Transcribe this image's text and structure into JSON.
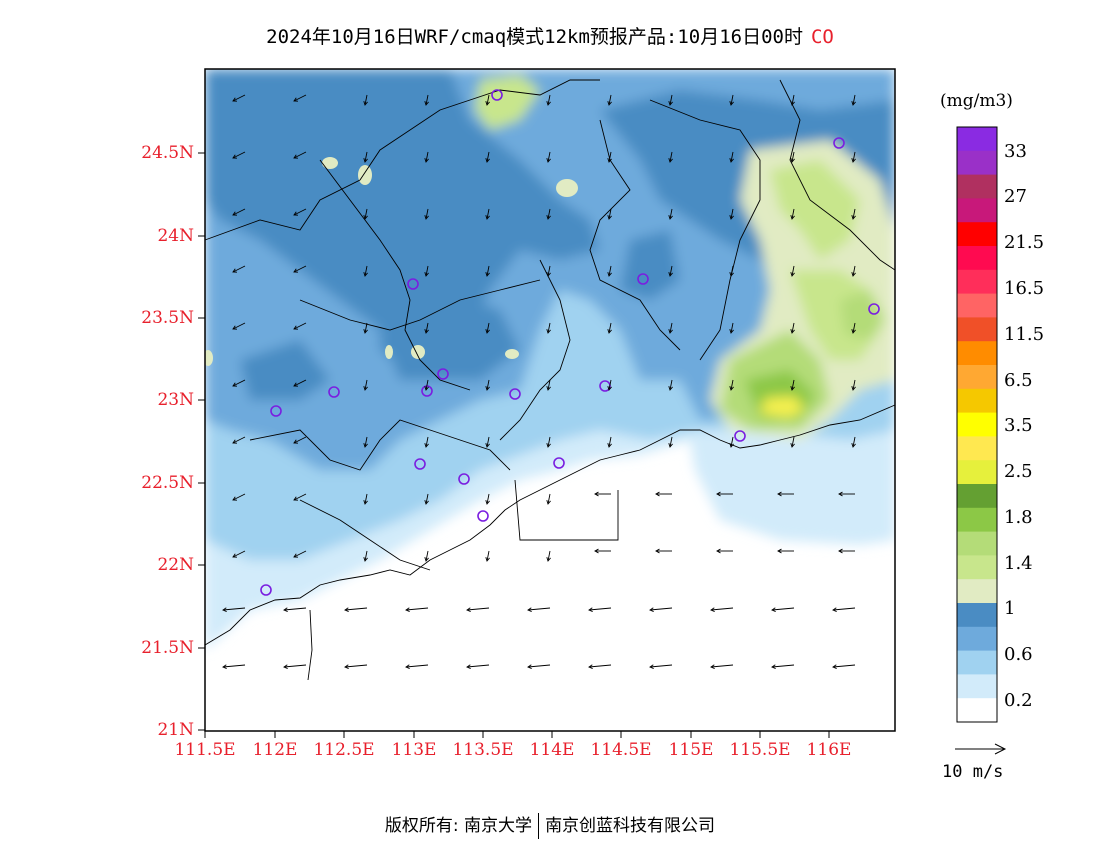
{
  "title": {
    "text": "2024年10月16日WRF/cmaq模式12km预报产品:10月16日00时",
    "species": "CO"
  },
  "map": {
    "lat_ticks": [
      "24.5N",
      "24N",
      "23.5N",
      "23N",
      "22.5N",
      "22N",
      "21.5N",
      "21N"
    ],
    "lon_ticks": [
      "111.5E",
      "112E",
      "112.5E",
      "113E",
      "113.5E",
      "114E",
      "114.5E",
      "115E",
      "115.5E",
      "116E"
    ],
    "lon_range": [
      111.5,
      116.6
    ],
    "lat_range": [
      21.0,
      24.95
    ]
  },
  "colorbar": {
    "unit": "(mg/m3)",
    "labels": [
      "33",
      "27",
      "21.5",
      "16.5",
      "11.5",
      "6.5",
      "3.5",
      "2.5",
      "1.8",
      "1.4",
      "1",
      "0.6",
      "0.2"
    ],
    "colors": [
      "#8a2be2",
      "#9a30c8",
      "#b03060",
      "#c8187a",
      "#ff0000",
      "#ff0a50",
      "#ff2e5a",
      "#ff6464",
      "#f05028",
      "#ff8c00",
      "#ffa832",
      "#f5c800",
      "#ffff00",
      "#ffe850",
      "#e6f03c",
      "#64a032",
      "#8cc846",
      "#b4dc78",
      "#c8e68c",
      "#e1ebc3",
      "#4a8cc3",
      "#6eaadc",
      "#a0d2f0",
      "#d2ebfa",
      "#ffffff"
    ]
  },
  "reference_vector": {
    "label": "10 m/s"
  },
  "footer": {
    "left": "版权所有: 南京大学",
    "right": "南京创蓝科技有限公司"
  }
}
